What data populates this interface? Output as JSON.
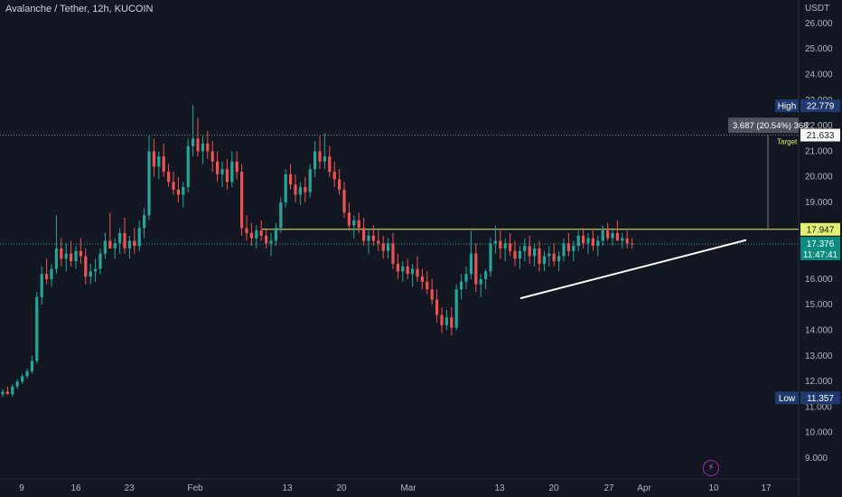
{
  "header": {
    "title": "Avalanche / Tether, 12h, KUCOIN"
  },
  "currency": "USDT",
  "colors": {
    "bg": "#131722",
    "up": "#26a69a",
    "down": "#ef5350",
    "grid": "#1e222d",
    "resistance": "#e1f06e",
    "trendline": "#ffffff",
    "price_tag": "#0c8c80",
    "hl_tag": "#1e3a6e"
  },
  "icons": {
    "flash": "flash-icon"
  },
  "chart_data": {
    "type": "candlestick",
    "title": "Avalanche / Tether, 12h, KUCOIN",
    "y_ticks": [
      "9.000",
      "10.000",
      "11.000",
      "12.000",
      "13.000",
      "14.000",
      "15.000",
      "16.000",
      "17.000",
      "18.000",
      "19.000",
      "20.000",
      "21.000",
      "22.000",
      "23.000",
      "24.000",
      "25.000",
      "26.000"
    ],
    "ylim": [
      8.0,
      26.8
    ],
    "x_ticks": [
      "9",
      "16",
      "23",
      "Feb",
      "13",
      "20",
      "Mar",
      "13",
      "20",
      "27",
      "Apr",
      "10",
      "17"
    ],
    "high": {
      "label": "High",
      "value": "22.779"
    },
    "low": {
      "label": "Low",
      "value": "11.357"
    },
    "target": {
      "label": "Target",
      "value": "21.633",
      "measure": "3.687 (20.54%) 368"
    },
    "resistance": {
      "value": "17.947"
    },
    "current": {
      "price": "17.376",
      "countdown": "11:47:41"
    },
    "candles": [
      [
        11.5,
        11.7,
        11.4,
        11.6
      ],
      [
        11.6,
        11.8,
        11.5,
        11.5
      ],
      [
        11.5,
        11.9,
        11.4,
        11.8
      ],
      [
        11.8,
        12.1,
        11.7,
        12.0
      ],
      [
        12.0,
        12.3,
        11.9,
        12.2
      ],
      [
        12.2,
        12.5,
        12.1,
        12.4
      ],
      [
        12.4,
        13.0,
        12.3,
        12.8
      ],
      [
        12.8,
        15.5,
        12.7,
        15.3
      ],
      [
        15.3,
        16.5,
        15.0,
        16.2
      ],
      [
        16.2,
        16.8,
        15.8,
        16.0
      ],
      [
        16.0,
        16.6,
        15.7,
        16.4
      ],
      [
        16.4,
        18.5,
        16.2,
        17.2
      ],
      [
        17.2,
        17.6,
        16.5,
        16.8
      ],
      [
        16.8,
        17.4,
        16.3,
        17.0
      ],
      [
        17.0,
        17.5,
        16.5,
        16.7
      ],
      [
        16.7,
        17.3,
        16.4,
        17.1
      ],
      [
        17.1,
        17.6,
        16.6,
        16.9
      ],
      [
        16.9,
        17.2,
        15.8,
        16.1
      ],
      [
        16.1,
        16.6,
        15.8,
        16.3
      ],
      [
        16.3,
        16.8,
        15.9,
        16.4
      ],
      [
        16.4,
        17.2,
        16.2,
        17.0
      ],
      [
        17.0,
        17.8,
        16.8,
        17.5
      ],
      [
        17.5,
        18.6,
        17.3,
        17.2
      ],
      [
        17.2,
        17.6,
        16.8,
        17.4
      ],
      [
        17.4,
        18.0,
        17.0,
        17.8
      ],
      [
        17.8,
        18.4,
        17.0,
        17.2
      ],
      [
        17.2,
        17.7,
        16.8,
        17.5
      ],
      [
        17.5,
        18.0,
        17.0,
        17.3
      ],
      [
        17.3,
        18.3,
        17.1,
        18.0
      ],
      [
        18.0,
        18.8,
        17.6,
        18.5
      ],
      [
        18.5,
        21.6,
        18.3,
        21.0
      ],
      [
        21.0,
        21.5,
        20.0,
        20.4
      ],
      [
        20.4,
        21.0,
        19.9,
        20.8
      ],
      [
        20.8,
        21.3,
        20.0,
        20.2
      ],
      [
        20.2,
        20.5,
        19.6,
        19.8
      ],
      [
        19.8,
        20.2,
        19.3,
        19.5
      ],
      [
        19.5,
        20.0,
        19.0,
        19.3
      ],
      [
        19.3,
        19.8,
        18.8,
        19.6
      ],
      [
        19.6,
        21.5,
        19.4,
        21.2
      ],
      [
        21.2,
        22.8,
        20.8,
        21.5
      ],
      [
        21.5,
        22.3,
        20.8,
        21.0
      ],
      [
        21.0,
        21.6,
        20.5,
        21.3
      ],
      [
        21.3,
        21.8,
        20.7,
        21.0
      ],
      [
        21.0,
        21.4,
        20.2,
        20.6
      ],
      [
        20.6,
        21.0,
        19.8,
        20.1
      ],
      [
        20.1,
        20.6,
        19.6,
        20.3
      ],
      [
        20.3,
        20.7,
        19.5,
        19.8
      ],
      [
        19.8,
        21.0,
        19.6,
        20.6
      ],
      [
        20.6,
        21.0,
        19.9,
        20.2
      ],
      [
        20.2,
        20.5,
        17.7,
        18.0
      ],
      [
        18.0,
        18.5,
        17.5,
        17.8
      ],
      [
        17.8,
        18.2,
        17.3,
        17.6
      ],
      [
        17.6,
        18.1,
        17.2,
        17.9
      ],
      [
        17.9,
        18.3,
        17.5,
        17.7
      ],
      [
        17.7,
        18.0,
        17.2,
        17.4
      ],
      [
        17.4,
        17.8,
        16.9,
        17.5
      ],
      [
        17.5,
        18.2,
        17.3,
        18.0
      ],
      [
        18.0,
        19.2,
        17.8,
        19.0
      ],
      [
        19.0,
        20.3,
        18.8,
        20.1
      ],
      [
        20.1,
        20.5,
        19.5,
        19.7
      ],
      [
        19.7,
        20.1,
        19.0,
        19.3
      ],
      [
        19.3,
        19.8,
        18.9,
        19.6
      ],
      [
        19.6,
        20.0,
        19.0,
        19.4
      ],
      [
        19.4,
        20.5,
        19.2,
        20.3
      ],
      [
        20.3,
        21.4,
        20.0,
        21.0
      ],
      [
        21.0,
        21.6,
        20.3,
        20.6
      ],
      [
        20.6,
        21.7,
        20.3,
        20.8
      ],
      [
        20.8,
        21.2,
        20.0,
        20.2
      ],
      [
        20.2,
        20.6,
        19.6,
        19.9
      ],
      [
        19.9,
        20.3,
        19.3,
        19.5
      ],
      [
        19.5,
        19.8,
        18.4,
        18.6
      ],
      [
        18.6,
        19.0,
        17.9,
        18.1
      ],
      [
        18.1,
        18.5,
        17.6,
        18.3
      ],
      [
        18.3,
        18.6,
        17.8,
        18.0
      ],
      [
        18.0,
        18.4,
        17.3,
        17.5
      ],
      [
        17.5,
        17.9,
        17.0,
        17.7
      ],
      [
        17.7,
        18.1,
        17.3,
        17.5
      ],
      [
        17.5,
        17.9,
        17.1,
        17.4
      ],
      [
        17.4,
        17.7,
        16.8,
        17.1
      ],
      [
        17.1,
        17.6,
        16.8,
        17.4
      ],
      [
        17.4,
        17.8,
        16.4,
        16.6
      ],
      [
        16.6,
        17.0,
        16.0,
        16.3
      ],
      [
        16.3,
        16.7,
        15.9,
        16.5
      ],
      [
        16.5,
        16.8,
        16.0,
        16.2
      ],
      [
        16.2,
        16.6,
        15.7,
        16.4
      ],
      [
        16.4,
        16.9,
        15.9,
        16.1
      ],
      [
        16.1,
        16.4,
        15.6,
        15.9
      ],
      [
        15.9,
        16.3,
        15.4,
        15.6
      ],
      [
        15.6,
        16.0,
        15.0,
        15.2
      ],
      [
        15.2,
        15.6,
        14.3,
        14.6
      ],
      [
        14.6,
        14.9,
        13.9,
        14.2
      ],
      [
        14.2,
        14.8,
        14.0,
        14.5
      ],
      [
        14.5,
        14.9,
        13.8,
        14.1
      ],
      [
        14.1,
        15.8,
        14.0,
        15.6
      ],
      [
        15.6,
        16.2,
        15.2,
        15.9
      ],
      [
        15.9,
        16.5,
        15.6,
        16.2
      ],
      [
        16.2,
        17.9,
        16.0,
        17.0
      ],
      [
        17.0,
        17.4,
        15.5,
        15.8
      ],
      [
        15.8,
        16.2,
        15.3,
        16.0
      ],
      [
        16.0,
        16.4,
        15.6,
        16.3
      ],
      [
        16.3,
        17.6,
        16.1,
        17.4
      ],
      [
        17.4,
        18.1,
        17.0,
        17.5
      ],
      [
        17.5,
        17.9,
        16.8,
        17.2
      ],
      [
        17.2,
        17.6,
        16.7,
        17.4
      ],
      [
        17.4,
        17.8,
        16.9,
        17.1
      ],
      [
        17.1,
        17.5,
        16.5,
        16.8
      ],
      [
        16.8,
        17.3,
        16.4,
        17.1
      ],
      [
        17.1,
        17.6,
        16.7,
        17.3
      ],
      [
        17.3,
        17.7,
        16.6,
        16.9
      ],
      [
        16.9,
        17.4,
        16.5,
        17.2
      ],
      [
        17.2,
        17.5,
        16.3,
        16.6
      ],
      [
        16.6,
        17.1,
        16.3,
        16.9
      ],
      [
        16.9,
        17.3,
        16.5,
        17.0
      ],
      [
        17.0,
        17.4,
        16.5,
        16.7
      ],
      [
        16.7,
        17.1,
        16.3,
        16.9
      ],
      [
        16.9,
        17.6,
        16.7,
        17.4
      ],
      [
        17.4,
        17.8,
        16.9,
        17.1
      ],
      [
        17.1,
        17.5,
        16.7,
        17.3
      ],
      [
        17.3,
        17.9,
        17.1,
        17.7
      ],
      [
        17.7,
        18.0,
        17.2,
        17.4
      ],
      [
        17.4,
        17.8,
        17.0,
        17.6
      ],
      [
        17.6,
        17.9,
        17.1,
        17.3
      ],
      [
        17.3,
        17.7,
        16.9,
        17.5
      ],
      [
        17.5,
        18.1,
        17.3,
        17.9
      ],
      [
        17.9,
        18.2,
        17.5,
        17.6
      ],
      [
        17.6,
        18.0,
        17.3,
        17.8
      ],
      [
        17.8,
        18.3,
        17.6,
        17.5
      ],
      [
        17.5,
        17.8,
        17.2,
        17.6
      ],
      [
        17.6,
        17.9,
        17.2,
        17.4
      ],
      [
        17.4,
        17.6,
        17.2,
        17.38
      ]
    ]
  }
}
